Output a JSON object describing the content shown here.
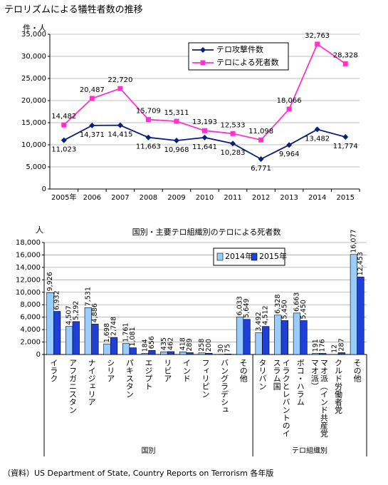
{
  "chart_data": [
    {
      "type": "line",
      "title": "テロリズムによる犠牲者数の推移",
      "y_label": "件・人",
      "categories": [
        "2005年",
        "2006",
        "2007",
        "2008",
        "2009",
        "2010",
        "2011",
        "2012",
        "2013",
        "2014",
        "2015"
      ],
      "series": [
        {
          "name": "テロ攻撃件数",
          "color": "#0a1f7a",
          "marker": "diamond",
          "values": [
            11023,
            14371,
            14415,
            11663,
            10968,
            11641,
            10283,
            6771,
            9964,
            13482,
            11774
          ],
          "value_labels": [
            "11,023",
            "14,371",
            "14,415",
            "11,663",
            "10,968",
            "11,641",
            "10,283",
            "6,771",
            "9,964",
            "13,482",
            "11,774"
          ]
        },
        {
          "name": "テロによる死者数",
          "color": "#ff33cc",
          "marker": "square",
          "values": [
            14482,
            20487,
            22720,
            15709,
            15311,
            13193,
            12533,
            11098,
            18066,
            32763,
            28328
          ],
          "value_labels": [
            "14,482",
            "20,487",
            "22,720",
            "15,709",
            "15,311",
            "13,193",
            "12,533",
            "11,098",
            "18,066",
            "32,763",
            "28,328"
          ]
        }
      ],
      "ylim": [
        0,
        35000
      ],
      "yticks": [
        0,
        {
          "value": 5000,
          "label": "5,000"
        },
        {
          "value": 10000,
          "label": "10,000"
        },
        {
          "value": 15000,
          "label": "15,000"
        },
        {
          "value": 20000,
          "label": "20,000"
        },
        {
          "value": 25000,
          "label": "25,000"
        },
        {
          "value": 30000,
          "label": "30,000"
        },
        {
          "value": 35000,
          "label": "35,000"
        }
      ],
      "grid": true
    },
    {
      "type": "bar",
      "title": "国別・主要テロ組織別のテロによる死者数",
      "y_label": "人",
      "groups": [
        {
          "name": "国別",
          "categories": [
            "イラク",
            "アフガニスタン",
            "ナイジェリア",
            "シリア",
            "パキスタン",
            "エジプト",
            "リビア",
            "インド",
            "フィリピン",
            "バングラデシュ",
            "その他"
          ]
        },
        {
          "name": "テロ組織別",
          "categories": [
            "タリバン",
            "イラクとレバントのイスラム国",
            "ボコ・ハラム",
            "マオ派（インド共産党マオ派）",
            "クルド労働者党",
            "その他"
          ]
        }
      ],
      "series": [
        {
          "name": "2014年",
          "color": "#99ccff",
          "values": [
            9926,
            4507,
            7531,
            1698,
            1761,
            184,
            435,
            418,
            258,
            30,
            6033,
            3492,
            6328,
            6663,
            191,
            12,
            16077
          ],
          "value_labels": [
            "9,926",
            "4,507",
            "7,531",
            "1,698",
            "1,761",
            "184",
            "435",
            "418",
            "258",
            "30",
            "6,033",
            "3,492",
            "6,328",
            "6,663",
            "191",
            "12",
            "16,077"
          ]
        },
        {
          "name": "2015年",
          "color": "#1f3fd6",
          "values": [
            6932,
            5292,
            4886,
            2748,
            1081,
            656,
            462,
            289,
            200,
            75,
            5649,
            4512,
            5450,
            5450,
            176,
            287,
            12453
          ],
          "value_labels": [
            "6,932",
            "5,292",
            "4,886",
            "2,748",
            "1,081",
            "656",
            "462",
            "289",
            "200",
            "75",
            "5,649",
            "4,512",
            "5,450",
            "5,450",
            "176",
            "287",
            "12,453"
          ]
        }
      ],
      "ylim": [
        0,
        18000
      ],
      "yticks": [
        0,
        {
          "value": 2000,
          "label": "2,000"
        },
        {
          "value": 4000,
          "label": "4,000"
        },
        {
          "value": 6000,
          "label": "6,000"
        },
        {
          "value": 8000,
          "label": "8,000"
        },
        {
          "value": 10000,
          "label": "10,000"
        },
        {
          "value": 12000,
          "label": "12,000"
        },
        {
          "value": 14000,
          "label": "14,000"
        },
        {
          "value": 16000,
          "label": "16,000"
        },
        {
          "value": 18000,
          "label": "18,000"
        }
      ],
      "grid": true
    }
  ],
  "footer": "（資料）US Department of State, Country Reports on Terrorism 各年版"
}
